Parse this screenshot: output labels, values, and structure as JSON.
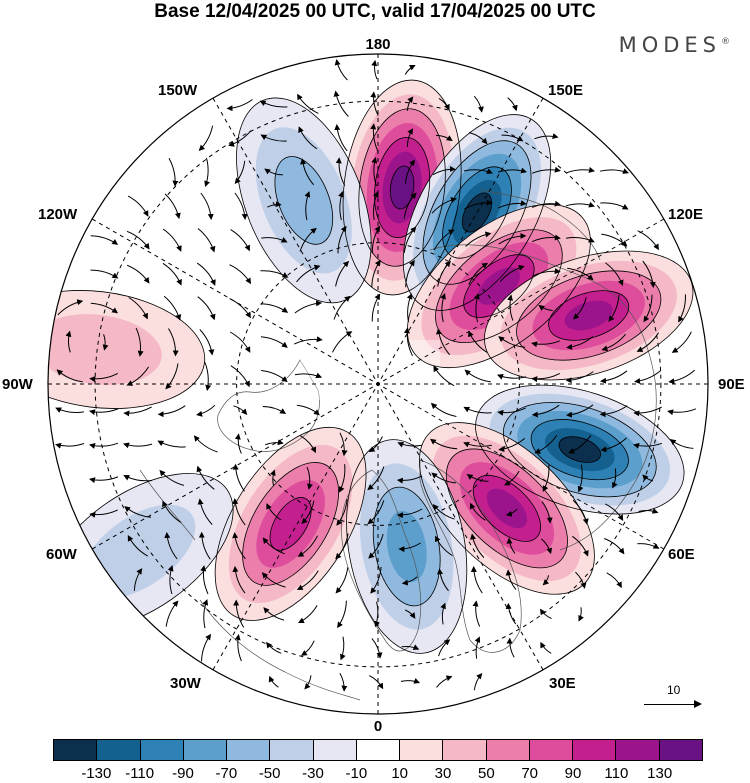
{
  "header": {
    "title": "Base 12/04/2025 00 UTC, valid 17/04/2025 00 UTC",
    "brand": "MODES",
    "brand_mark": "®"
  },
  "map": {
    "projection": "north-polar-stereographic",
    "longitude_labels": {
      "lon_180": "180",
      "lon_150e": "150E",
      "lon_120e": "120E",
      "lon_90e": "90E",
      "lon_60e": "60E",
      "lon_30e": "30E",
      "lon_0": "0",
      "lon_30w": "30W",
      "lon_60w": "60W",
      "lon_90w": "90W",
      "lon_120w": "120W",
      "lon_150w": "150W"
    },
    "reference_vector_label": "10",
    "anomaly_centers": [
      {
        "lon": 173,
        "lat": 48,
        "sign": "positive",
        "strength": 130
      },
      {
        "lon": 150,
        "lat": 48,
        "sign": "negative",
        "strength": 130
      },
      {
        "lon": 129,
        "lat": 57,
        "sign": "positive",
        "strength": 125
      },
      {
        "lon": 108,
        "lat": 43,
        "sign": "positive",
        "strength": 120
      },
      {
        "lon": 72,
        "lat": 45,
        "sign": "negative",
        "strength": 130
      },
      {
        "lon": 46,
        "lat": 52,
        "sign": "positive",
        "strength": 125
      },
      {
        "lon": 10,
        "lat": 55,
        "sign": "negative",
        "strength": 80
      },
      {
        "lon": -32,
        "lat": 55,
        "sign": "positive",
        "strength": 90
      },
      {
        "lon": -158,
        "lat": 48,
        "sign": "negative",
        "strength": 55
      },
      {
        "lon": -97,
        "lat": 30,
        "sign": "positive",
        "strength": 40
      },
      {
        "lon": -55,
        "lat": 28,
        "sign": "negative",
        "strength": 40
      }
    ]
  },
  "colorbar": {
    "colors": [
      "#0c2f4d",
      "#14608f",
      "#2d81b5",
      "#5c9fcd",
      "#8fb9de",
      "#bfcfe8",
      "#e6e7f3",
      "#ffffff",
      "#fbdede",
      "#f5b8c6",
      "#ec7eac",
      "#de4c9c",
      "#c41f8e",
      "#9c148b",
      "#6a1184"
    ],
    "tick_labels": [
      "-130",
      "-110",
      "-90",
      "-70",
      "-50",
      "-30",
      "-10",
      "10",
      "30",
      "50",
      "70",
      "90",
      "110",
      "130"
    ]
  }
}
